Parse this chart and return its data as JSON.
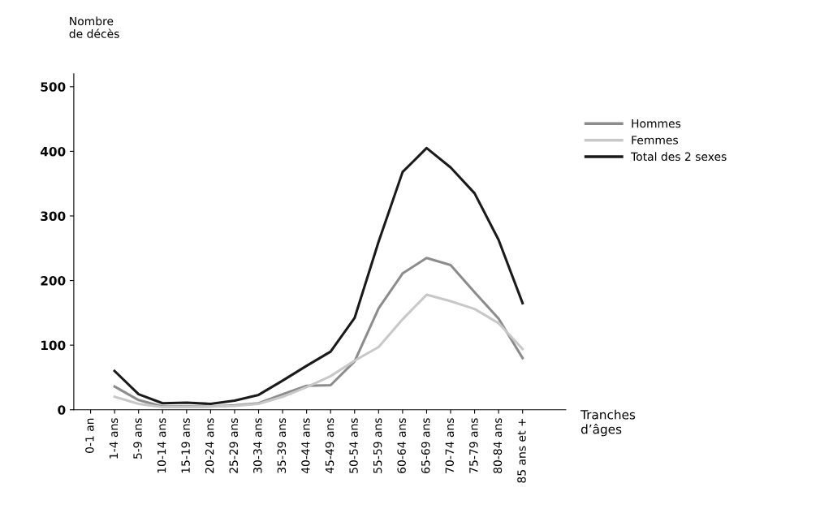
{
  "chart_data": {
    "type": "line",
    "ylabel": "Nombre\nde décès",
    "xlabel": "Tranches\nd’âges",
    "categories": [
      "0-1 an",
      "1-4 ans",
      "5-9 ans",
      "10-14 ans",
      "15-19 ans",
      "20-24 ans",
      "25-29 ans",
      "30-34 ans",
      "35-39 ans",
      "40-44 ans",
      "45-49 ans",
      "50-54 ans",
      "55-59 ans",
      "60-64 ans",
      "65-69 ans",
      "70-74 ans",
      "75-79 ans",
      "80-84 ans",
      "85 ans et +"
    ],
    "series": [
      {
        "name": "Hommes",
        "color": "#8c8c8c",
        "values": [
          null,
          36,
          15,
          5,
          5,
          5,
          7,
          10,
          24,
          37,
          38,
          75,
          157,
          211,
          235,
          224,
          182,
          141,
          80
        ]
      },
      {
        "name": "Femmes",
        "color": "#c8c8c8",
        "values": [
          null,
          20,
          9,
          4,
          4,
          5,
          6,
          9,
          20,
          35,
          52,
          76,
          97,
          140,
          178,
          168,
          156,
          134,
          94
        ]
      },
      {
        "name": "Total des 2 sexes",
        "color": "#1a1a1a",
        "values": [
          null,
          60,
          24,
          10,
          11,
          9,
          14,
          23,
          45,
          68,
          90,
          142,
          260,
          368,
          405,
          375,
          335,
          263,
          165
        ]
      }
    ],
    "ylim": [
      0,
      520
    ],
    "yticks": [
      0,
      100,
      200,
      300,
      400,
      500
    ],
    "grid": false,
    "legend": "right",
    "marker": "none",
    "line_style": "solid"
  }
}
